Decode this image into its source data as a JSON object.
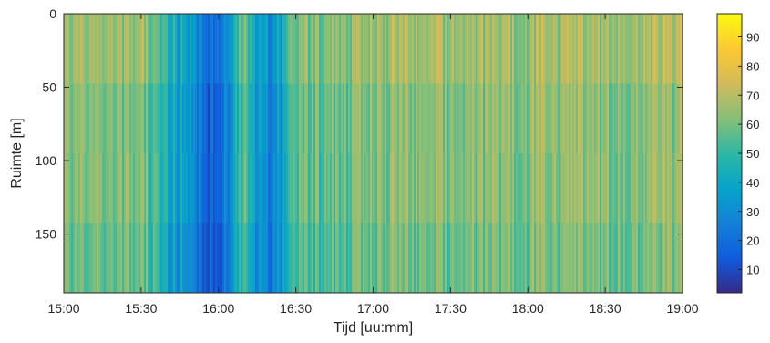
{
  "chart_data": {
    "type": "heatmap",
    "title": "",
    "xlabel": "Tijd [uu:mm]",
    "ylabel": "Ruimte [m]",
    "x_ticks": [
      "15:00",
      "15:30",
      "16:00",
      "16:30",
      "17:00",
      "17:30",
      "18:00",
      "18:30",
      "19:00"
    ],
    "y_ticks": [
      "0",
      "50",
      "100",
      "150"
    ],
    "x_range": [
      "15:00",
      "19:00"
    ],
    "y_range": [
      0,
      190
    ],
    "y_reversed": true,
    "colorbar": {
      "colormap": "parula",
      "range": [
        2,
        98
      ],
      "ticks": [
        "10",
        "20",
        "30",
        "40",
        "50",
        "60",
        "70",
        "80",
        "90"
      ],
      "colors": [
        "#352a87",
        "#0f5cdd",
        "#1481d6",
        "#06a4ca",
        "#2eb7a4",
        "#87bf77",
        "#d1bb59",
        "#fec832",
        "#f9fb0e"
      ]
    },
    "value_profile_over_time": {
      "description_values": [
        {
          "time": "15:00",
          "value": 62
        },
        {
          "time": "15:30",
          "value": 60
        },
        {
          "time": "16:00",
          "value": 12
        },
        {
          "time": "16:10",
          "value": 58
        },
        {
          "time": "16:15",
          "value": 35
        },
        {
          "time": "16:20",
          "value": 25
        },
        {
          "time": "16:25",
          "value": 35
        },
        {
          "time": "16:30",
          "value": 55
        },
        {
          "time": "17:00",
          "value": 62
        },
        {
          "time": "17:30",
          "value": 62
        },
        {
          "time": "18:00",
          "value": 63
        },
        {
          "time": "18:30",
          "value": 62
        },
        {
          "time": "19:00",
          "value": 64
        }
      ]
    }
  }
}
